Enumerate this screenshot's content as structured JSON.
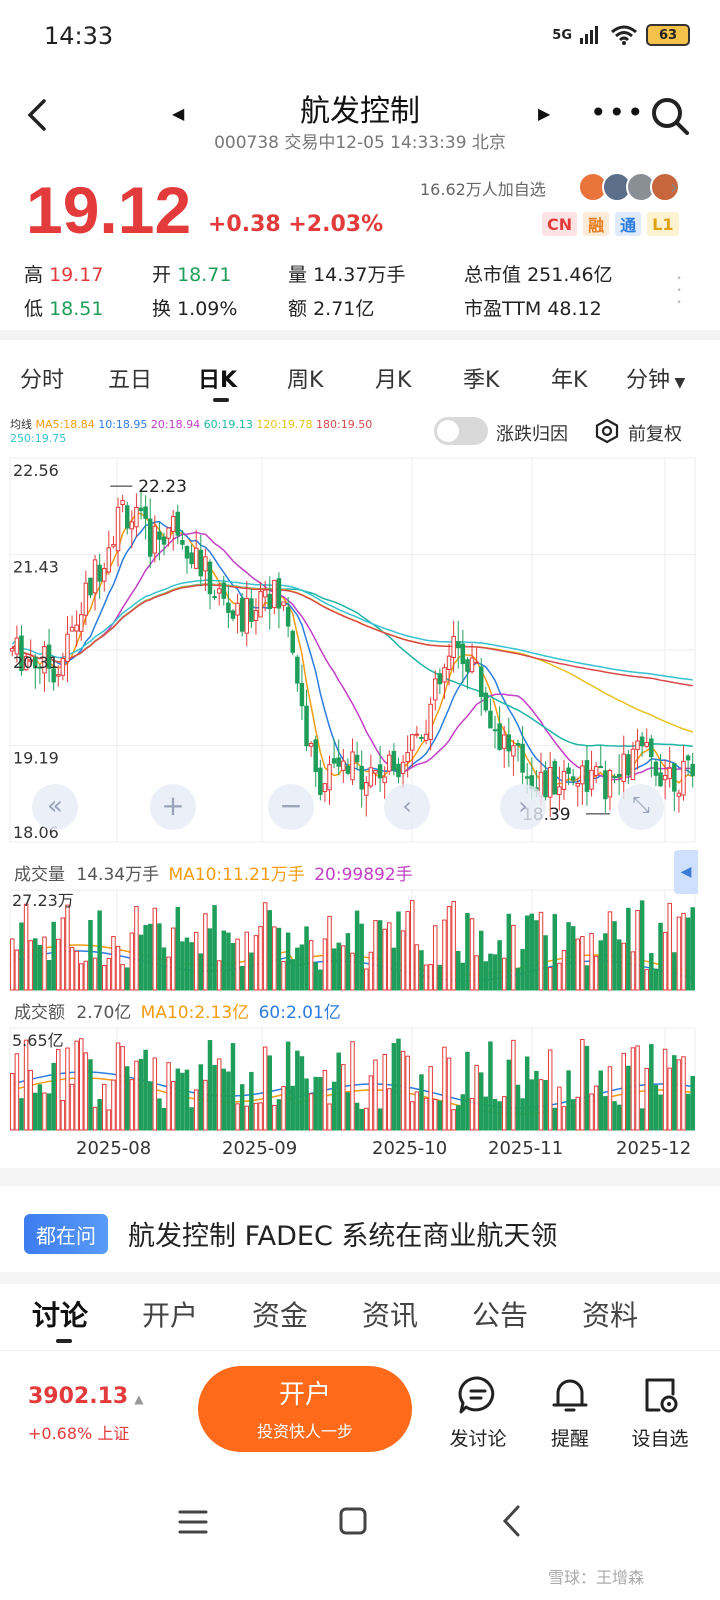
{
  "status_bar": {
    "time": "14:33",
    "signal": "5G",
    "battery": "63"
  },
  "header": {
    "title": "航发控制",
    "subtitle": "000738 交易中12-05 14:33:39 北京"
  },
  "quote": {
    "price": "19.12",
    "change": "+0.38 +2.03%",
    "followers": "16.62万人加自选",
    "badges": [
      "CN",
      "融",
      "通",
      "L1"
    ],
    "stats": {
      "high_label": "高",
      "high": "19.17",
      "low_label": "低",
      "low": "18.51",
      "open_label": "开",
      "open": "18.71",
      "turnover_label": "换",
      "turnover": "1.09%",
      "volume_label": "量",
      "volume": "14.37万手",
      "amount_label": "额",
      "amount": "2.71亿",
      "mktcap_label": "总市值",
      "mktcap": "251.46亿",
      "pe_label": "市盈TTM",
      "pe": "48.12"
    }
  },
  "kline_tabs": [
    "分时",
    "五日",
    "日K",
    "周K",
    "月K",
    "季K",
    "年K",
    "分钟"
  ],
  "active_tab": "日K",
  "ma_legend": {
    "prefix": "均线",
    "ma5": "MA5:18.84",
    "ma10": "10:18.95",
    "ma20": "20:18.94",
    "ma60": "60:19.13",
    "ma120": "120:19.78",
    "ma180": "180:19.50",
    "ma250": "250:19.75"
  },
  "controls": {
    "toggle_label": "涨跌归因",
    "adjust_label": "前复权"
  },
  "chart_data": {
    "type": "candlestick",
    "y_ticks": [
      "22.56",
      "21.43",
      "20.31",
      "19.19",
      "18.06"
    ],
    "ylim": [
      18.06,
      22.56
    ],
    "high_annotation": "22.23",
    "low_annotation": "18.39",
    "x_labels": [
      "2025-08",
      "2025-09",
      "2025-10",
      "2025-11",
      "2025-12"
    ],
    "volume_panel": {
      "label": "成交量",
      "value": "14.34万手",
      "ma10": "MA10:11.21万手",
      "ma20": "20:99892手",
      "max_label": "27.23万"
    },
    "amount_panel": {
      "label": "成交额",
      "value": "2.70亿",
      "ma10": "MA10:2.13亿",
      "ma60": "60:2.01亿",
      "max_label": "5.65亿"
    },
    "colors": {
      "up": "#e33b3b",
      "down": "#1f9e5a",
      "ma5": "#f39c12",
      "ma10": "#2d7de0",
      "ma20": "#c23fc6",
      "ma60": "#1fb5a6",
      "ma120": "#e6c21b",
      "ma180": "#d94a4a",
      "ma250": "#36c2d0"
    }
  },
  "ask": {
    "badge": "都在问",
    "text": "航发控制 FADEC 系统在商业航天领"
  },
  "bottom_tabs": [
    "讨论",
    "开户",
    "资金",
    "资讯",
    "公告",
    "资料"
  ],
  "footer": {
    "index_value": "3902.13",
    "index_change": "+0.68% 上证",
    "open_button": "开户",
    "open_sub": "投资快人一步",
    "actions": [
      "发讨论",
      "提醒",
      "设自选"
    ]
  },
  "watermark": "雪球：王增森"
}
